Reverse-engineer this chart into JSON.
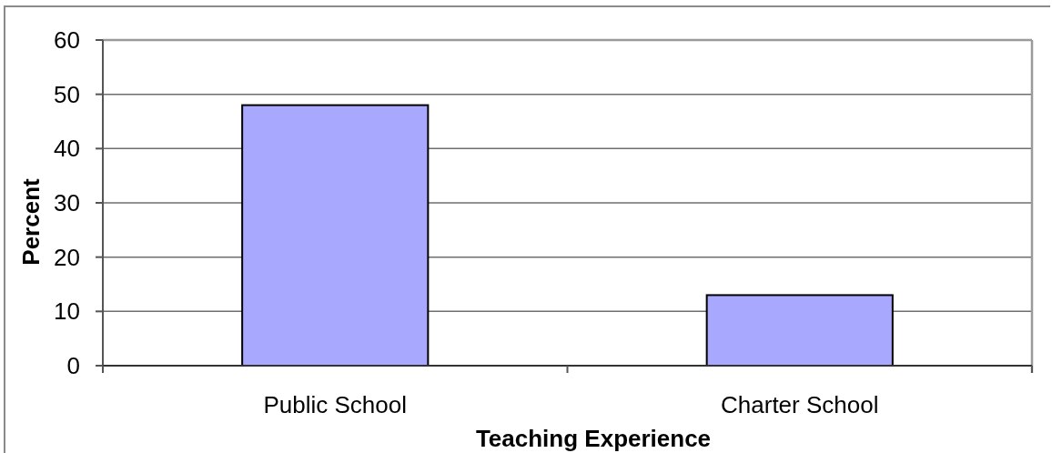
{
  "chart_data": {
    "type": "bar",
    "xlabel": "Teaching Experience",
    "ylabel": "Percent",
    "categories": [
      "Public School",
      "Charter School"
    ],
    "values": [
      48,
      13
    ],
    "color": "#a8a8ff",
    "ylim": [
      0,
      60
    ],
    "yticks": [
      0,
      10,
      20,
      30,
      40,
      50,
      60
    ],
    "grid": "y"
  }
}
